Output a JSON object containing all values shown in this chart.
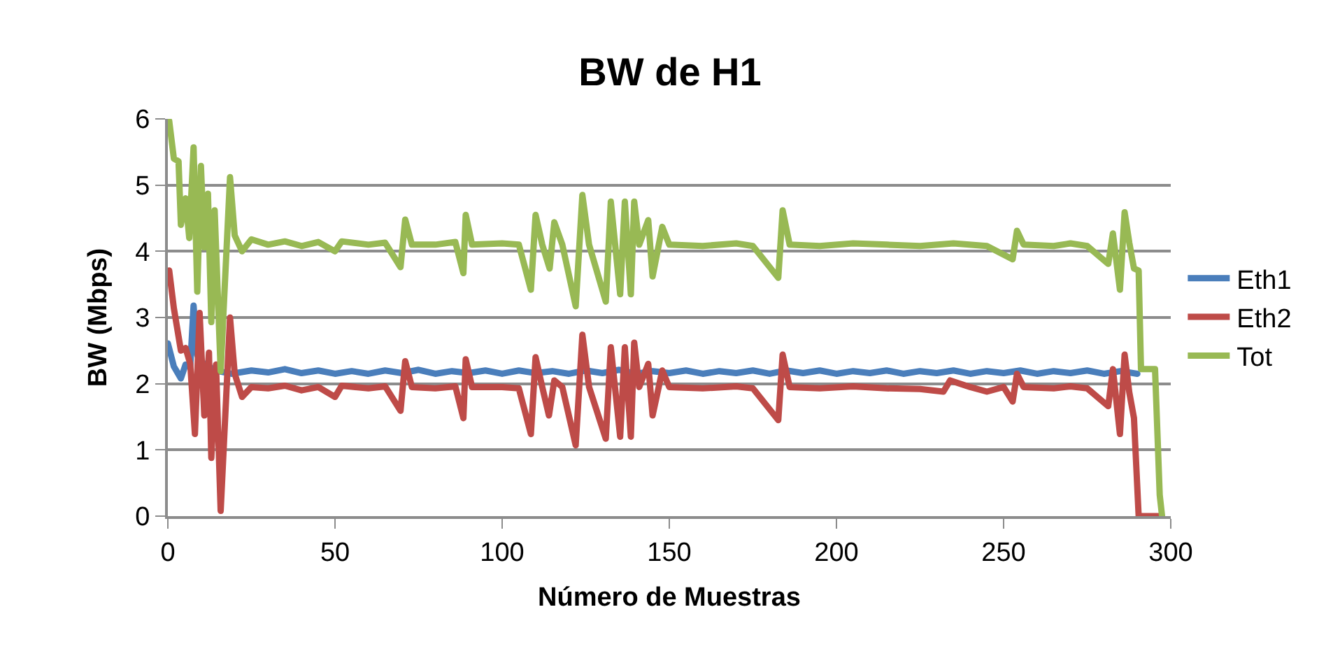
{
  "chart_data": {
    "type": "line",
    "title": "BW de H1",
    "xlabel": "Número de Muestras",
    "ylabel": "BW (Mbps)",
    "xlim": [
      0,
      300
    ],
    "xticks": [
      0,
      50,
      100,
      150,
      200,
      250,
      300
    ],
    "ylim": [
      0,
      6
    ],
    "yticks": [
      0,
      1,
      2,
      3,
      4,
      5,
      6
    ],
    "grid": "y",
    "legend": "right",
    "marker": "none",
    "line_style": "solid",
    "series": [
      {
        "name": "Eth1",
        "color": "#4a7ebb",
        "x": [
          0,
          1.8,
          3.9,
          5.3,
          6.7,
          7.7,
          8.8,
          10.9,
          15,
          19,
          25,
          30,
          35,
          40,
          45,
          50,
          55,
          60,
          65,
          70,
          75,
          80,
          85,
          90,
          95,
          100,
          105,
          110,
          115,
          120,
          125,
          130,
          135,
          140,
          145,
          150,
          155,
          160,
          165,
          170,
          175,
          180,
          185,
          190,
          195,
          200,
          205,
          210,
          215,
          220,
          225,
          230,
          235,
          240,
          245,
          250,
          255,
          260,
          265,
          270,
          275,
          280,
          285,
          290
        ],
        "values": [
          2.61,
          2.26,
          2.08,
          2.29,
          2.26,
          3.18,
          2.43,
          2.29,
          2.19,
          2.15,
          2.2,
          2.17,
          2.22,
          2.16,
          2.2,
          2.15,
          2.19,
          2.15,
          2.2,
          2.16,
          2.21,
          2.15,
          2.19,
          2.16,
          2.2,
          2.15,
          2.2,
          2.16,
          2.19,
          2.15,
          2.2,
          2.16,
          2.21,
          2.15,
          2.19,
          2.16,
          2.2,
          2.15,
          2.19,
          2.16,
          2.2,
          2.15,
          2.2,
          2.16,
          2.2,
          2.15,
          2.19,
          2.16,
          2.2,
          2.15,
          2.19,
          2.16,
          2.2,
          2.15,
          2.19,
          2.16,
          2.2,
          2.15,
          2.19,
          2.16,
          2.2,
          2.15,
          2.19,
          2.15
        ]
      },
      {
        "name": "Eth2",
        "color": "#be4b48",
        "x": [
          0.4,
          1.8,
          3.9,
          5.3,
          6.7,
          8.1,
          9.5,
          10.9,
          12.3,
          13,
          14.4,
          15.8,
          18.6,
          20,
          22.2,
          25,
          30,
          35,
          40,
          45,
          50,
          52,
          60,
          65,
          69.6,
          71,
          73,
          80,
          86,
          88.4,
          89.1,
          91,
          100,
          105,
          108.6,
          110,
          112,
          114,
          115.6,
          118,
          122,
          124,
          126,
          131,
          132.5,
          135.3,
          136.7,
          138.5,
          139.5,
          141,
          143.7,
          145,
          147.9,
          150,
          160,
          170,
          175,
          182.6,
          183.9,
          186,
          195,
          205,
          215,
          225,
          232,
          234,
          240,
          245,
          250,
          252.7,
          254,
          256,
          265,
          270,
          275,
          281.3,
          282.7,
          284.8,
          286.2,
          287.6,
          289,
          290.4,
          297
        ],
        "values": [
          3.71,
          3.14,
          2.5,
          2.54,
          2.3,
          1.24,
          3.07,
          1.52,
          2.47,
          0.88,
          2.29,
          0.08,
          3.0,
          2.15,
          1.8,
          1.95,
          1.93,
          1.97,
          1.9,
          1.95,
          1.8,
          1.97,
          1.93,
          1.96,
          1.59,
          2.34,
          1.95,
          1.93,
          1.96,
          1.48,
          2.37,
          1.95,
          1.95,
          1.93,
          1.24,
          2.4,
          1.95,
          1.52,
          2.05,
          1.95,
          1.07,
          2.74,
          1.95,
          1.17,
          2.55,
          1.2,
          2.55,
          1.2,
          2.62,
          1.95,
          2.3,
          1.52,
          2.2,
          1.95,
          1.93,
          1.96,
          1.93,
          1.45,
          2.44,
          1.95,
          1.93,
          1.96,
          1.93,
          1.92,
          1.88,
          2.05,
          1.95,
          1.88,
          1.95,
          1.73,
          2.15,
          1.95,
          1.93,
          1.96,
          1.93,
          1.66,
          2.22,
          1.24,
          2.44,
          1.87,
          1.48,
          0,
          0
        ]
      },
      {
        "name": "Tot",
        "color": "#98b954",
        "x": [
          0.4,
          1.8,
          3.2,
          3.9,
          5.3,
          6.4,
          7.7,
          8.8,
          9.9,
          10.9,
          12,
          13,
          14,
          15.8,
          18.6,
          20,
          22.2,
          25,
          30,
          35,
          40,
          45,
          50,
          52,
          60,
          65,
          69.6,
          71,
          73,
          80,
          86,
          88.4,
          89.1,
          91,
          100,
          105,
          108.6,
          110,
          112,
          114.2,
          115.6,
          118,
          122,
          124,
          126,
          131,
          132.5,
          135.3,
          136.7,
          138.5,
          139.5,
          141,
          143.7,
          145,
          147.9,
          150,
          160,
          170,
          175,
          182.6,
          183.9,
          186,
          195,
          205,
          215,
          225,
          235,
          245,
          252.7,
          254,
          256,
          265,
          270,
          275,
          281.3,
          282.7,
          284.8,
          286.2,
          287.6,
          289,
          290.4,
          291.1,
          295.3,
          296.7,
          297.4
        ],
        "values": [
          5.97,
          5.4,
          5.36,
          4.4,
          4.8,
          4.2,
          5.57,
          3.39,
          5.29,
          4.06,
          4.87,
          2.93,
          4.62,
          2.19,
          5.12,
          4.24,
          4.0,
          4.18,
          4.1,
          4.15,
          4.08,
          4.14,
          4.0,
          4.15,
          4.1,
          4.13,
          3.76,
          4.48,
          4.1,
          4.1,
          4.14,
          3.67,
          4.55,
          4.1,
          4.12,
          4.1,
          3.42,
          4.55,
          4.1,
          3.74,
          4.44,
          4.1,
          3.17,
          4.85,
          4.1,
          3.24,
          4.75,
          3.35,
          4.75,
          3.35,
          4.75,
          4.1,
          4.47,
          3.62,
          4.37,
          4.1,
          4.08,
          4.12,
          4.08,
          3.6,
          4.62,
          4.1,
          4.08,
          4.12,
          4.1,
          4.08,
          4.12,
          4.08,
          3.88,
          4.31,
          4.1,
          4.08,
          4.12,
          4.08,
          3.81,
          4.27,
          3.42,
          4.59,
          4.13,
          3.74,
          3.71,
          2.22,
          2.22,
          0.32,
          0
        ]
      }
    ]
  }
}
